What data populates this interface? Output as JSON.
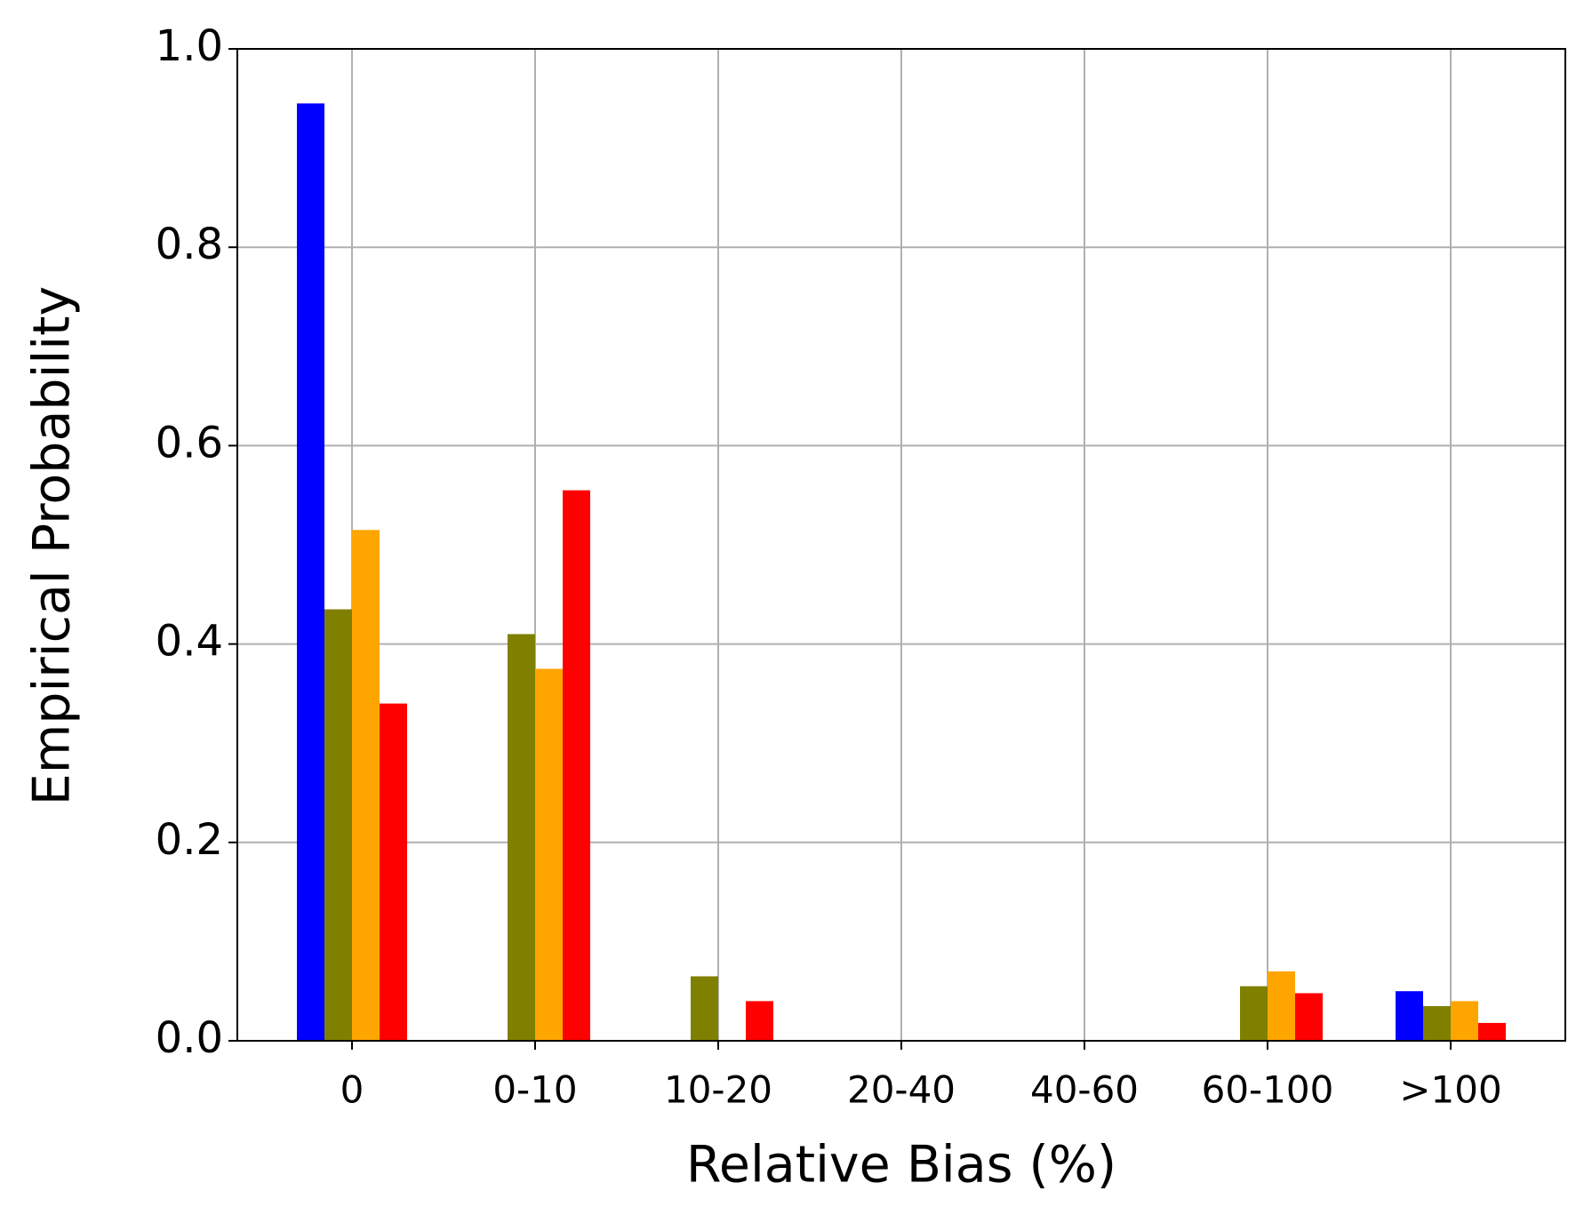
{
  "chart_data": {
    "type": "bar",
    "x_label": "Relative Bias (%)",
    "y_label": "Empirical Probability",
    "categories": [
      "0",
      "0-10",
      "10-20",
      "20-40",
      "40-60",
      "60-100",
      ">100"
    ],
    "series": [
      {
        "color": "#0000ff",
        "values": [
          0.945,
          0,
          0,
          0,
          0,
          0,
          0.05
        ]
      },
      {
        "color": "#808000",
        "values": [
          0.435,
          0.41,
          0.065,
          0,
          0,
          0.055,
          0.035
        ]
      },
      {
        "color": "#ffa500",
        "values": [
          0.515,
          0.375,
          0,
          0,
          0,
          0.07,
          0.04
        ]
      },
      {
        "color": "#ff0000",
        "values": [
          0.34,
          0.555,
          0.04,
          0,
          0,
          0.048,
          0.018
        ]
      }
    ],
    "ylim": [
      0,
      1.0
    ],
    "yticks": [
      {
        "value": 0,
        "label": "0.0"
      },
      {
        "value": 0.2,
        "label": "0.2"
      },
      {
        "value": 0.4,
        "label": "0.4"
      },
      {
        "value": 0.6,
        "label": "0.6"
      },
      {
        "value": 0.8,
        "label": "0.8"
      },
      {
        "value": 1.0,
        "label": "1.0"
      }
    ],
    "grid": true
  }
}
